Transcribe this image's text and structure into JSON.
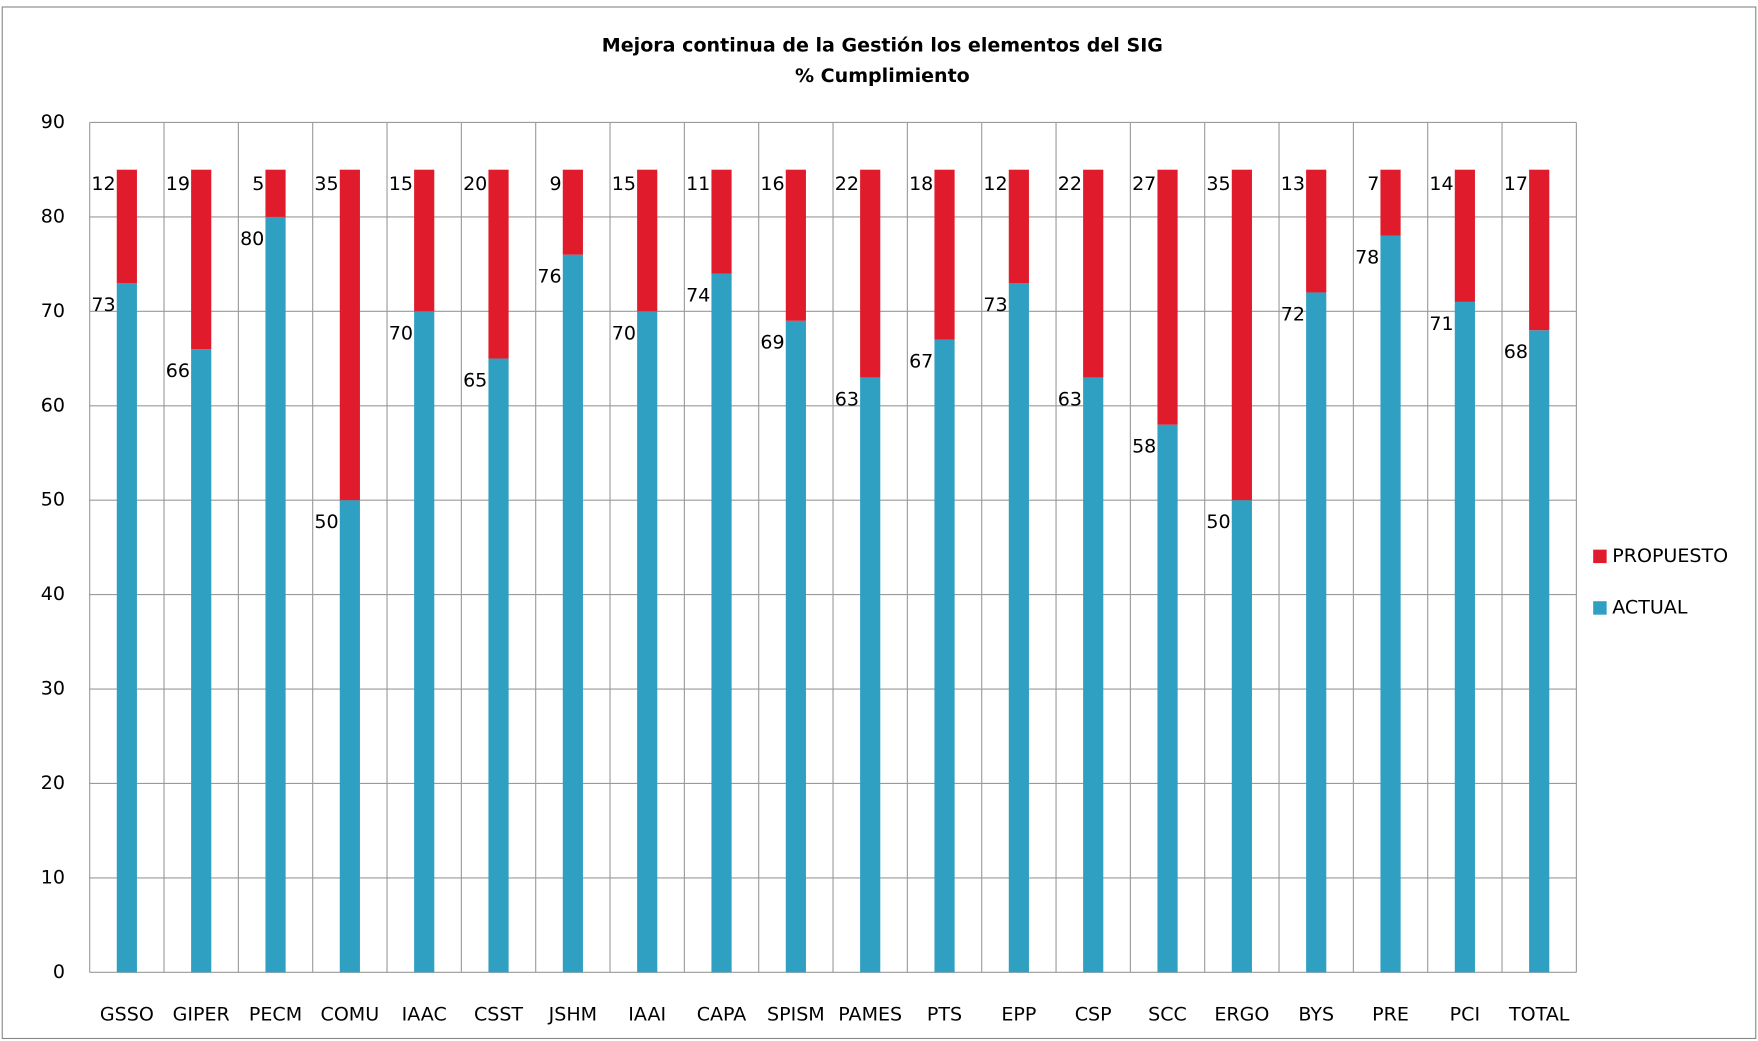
{
  "chart_data": {
    "type": "stacked_bar",
    "title": "Mejora continua de la Gestión los elementos del SIG",
    "subtitle": "% Cumplimiento",
    "categories": [
      "GSSO",
      "GIPER",
      "PECM",
      "COMU",
      "IAAC",
      "CSST",
      "JSHM",
      "IAAI",
      "CAPA",
      "SPISM",
      "PAMES",
      "PTS",
      "EPP",
      "CSP",
      "SCC",
      "ERGO",
      "BYS",
      "PRE",
      "PCI",
      "TOTAL"
    ],
    "series": [
      {
        "name": "ACTUAL",
        "color": "#30a0c2",
        "values": [
          73,
          66,
          80,
          50,
          70,
          65,
          76,
          70,
          74,
          69,
          63,
          67,
          73,
          63,
          58,
          50,
          72,
          78,
          71,
          68
        ]
      },
      {
        "name": "PROPUESTO",
        "color": "#e01c2c",
        "values": [
          12,
          19,
          5,
          35,
          15,
          20,
          9,
          15,
          11,
          16,
          22,
          18,
          12,
          22,
          27,
          35,
          13,
          7,
          14,
          17
        ]
      }
    ],
    "ylim": [
      0,
      90
    ],
    "yticks": [
      0,
      10,
      20,
      30,
      40,
      50,
      60,
      70,
      80,
      90
    ],
    "grid": true,
    "legend": "right"
  }
}
